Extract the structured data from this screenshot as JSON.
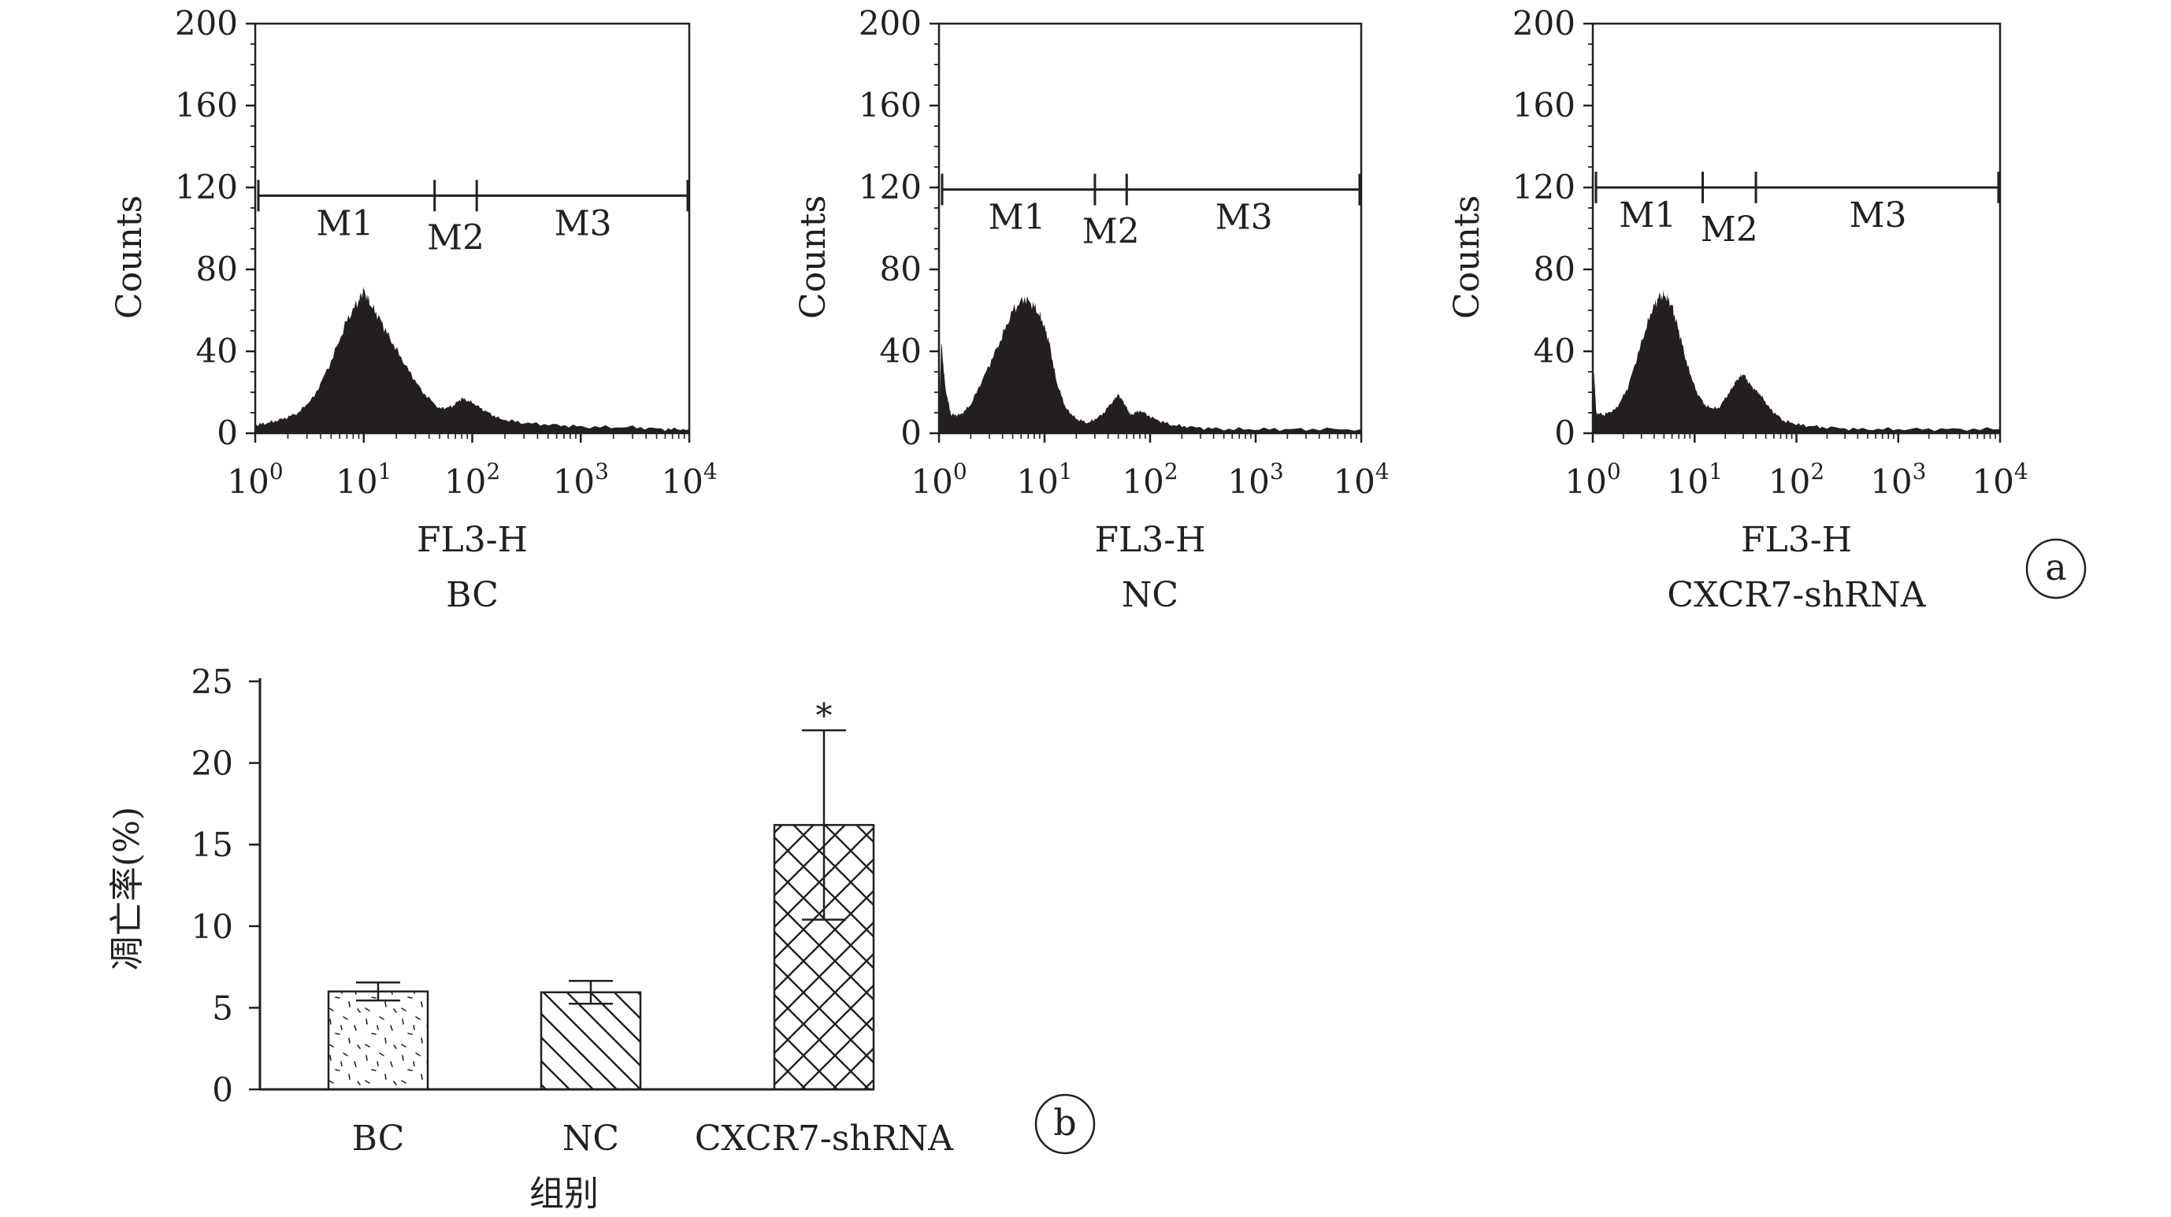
{
  "panel_letters": {
    "a": "a",
    "b": "b"
  },
  "colors": {
    "ink": "#231f20",
    "histogram_fill": "#231f20",
    "bar_fill": "#ffffff"
  },
  "chart_data": [
    {
      "type": "area",
      "panel": "a",
      "subtitle": "BC",
      "xlabel": "FL3-H",
      "ylabel": "Counts",
      "x_scale": "log",
      "xlim": [
        1,
        10000
      ],
      "ylim": [
        0,
        200
      ],
      "x_ticks": [
        {
          "base": "10",
          "exp": "0"
        },
        {
          "base": "10",
          "exp": "1"
        },
        {
          "base": "10",
          "exp": "2"
        },
        {
          "base": "10",
          "exp": "3"
        },
        {
          "base": "10",
          "exp": "4"
        }
      ],
      "y_ticks": [
        "0",
        "40",
        "80",
        "120",
        "160",
        "200"
      ],
      "gates": [
        {
          "label": "M1",
          "range": [
            1.0,
            45
          ]
        },
        {
          "label": "M2",
          "range": [
            45,
            110
          ]
        },
        {
          "label": "M3",
          "range": [
            110,
            10000
          ]
        }
      ],
      "gate_y": 116,
      "x": [
        1.0,
        1.3,
        1.8,
        2.5,
        3.5,
        5.0,
        7.0,
        9.0,
        10.0,
        11.5,
        14,
        18,
        25,
        35,
        50,
        65,
        80,
        100,
        130,
        180,
        300,
        600,
        1200,
        3000,
        6000,
        10000
      ],
      "y": [
        4,
        5,
        7,
        10,
        18,
        35,
        55,
        65,
        70,
        63,
        56,
        45,
        32,
        20,
        12,
        13,
        17,
        15,
        11,
        7,
        5,
        4,
        3,
        3,
        2,
        2
      ]
    },
    {
      "type": "area",
      "panel": "a",
      "subtitle": "NC",
      "xlabel": "FL3-H",
      "ylabel": "Counts",
      "x_scale": "log",
      "xlim": [
        1,
        10000
      ],
      "ylim": [
        0,
        200
      ],
      "x_ticks": [
        {
          "base": "10",
          "exp": "0"
        },
        {
          "base": "10",
          "exp": "1"
        },
        {
          "base": "10",
          "exp": "2"
        },
        {
          "base": "10",
          "exp": "3"
        },
        {
          "base": "10",
          "exp": "4"
        }
      ],
      "y_ticks": [
        "0",
        "40",
        "80",
        "120",
        "160",
        "200"
      ],
      "gates": [
        {
          "label": "M1",
          "range": [
            1.0,
            30
          ]
        },
        {
          "label": "M2",
          "range": [
            30,
            60
          ]
        },
        {
          "label": "M3",
          "range": [
            60,
            10000
          ]
        }
      ],
      "gate_y": 119,
      "x": [
        1.0,
        1.05,
        1.15,
        1.3,
        1.6,
        2.0,
        2.8,
        3.8,
        5.0,
        6.5,
        8.0,
        9.5,
        11,
        13,
        16,
        20,
        26,
        35,
        45,
        50,
        58,
        65,
        80,
        110,
        160,
        250,
        500,
        1200,
        3000,
        10000
      ],
      "y": [
        2,
        45,
        22,
        9,
        9,
        14,
        30,
        45,
        60,
        66,
        62,
        55,
        45,
        25,
        12,
        7,
        5,
        9,
        16,
        19,
        14,
        9,
        11,
        7,
        4,
        3,
        2,
        2,
        2,
        2
      ]
    },
    {
      "type": "area",
      "panel": "a",
      "subtitle": "CXCR7-shRNA",
      "xlabel": "FL3-H",
      "ylabel": "Counts",
      "x_scale": "log",
      "xlim": [
        1,
        10000
      ],
      "ylim": [
        0,
        200
      ],
      "x_ticks": [
        {
          "base": "10",
          "exp": "0"
        },
        {
          "base": "10",
          "exp": "1"
        },
        {
          "base": "10",
          "exp": "2"
        },
        {
          "base": "10",
          "exp": "3"
        },
        {
          "base": "10",
          "exp": "4"
        }
      ],
      "y_ticks": [
        "0",
        "40",
        "80",
        "120",
        "160",
        "200"
      ],
      "gates": [
        {
          "label": "M1",
          "range": [
            1.0,
            12
          ]
        },
        {
          "label": "M2",
          "range": [
            12,
            40
          ]
        },
        {
          "label": "M3",
          "range": [
            40,
            10000
          ]
        }
      ],
      "gate_y": 120,
      "x": [
        1.0,
        1.03,
        1.08,
        1.3,
        1.7,
        2.2,
        3.0,
        3.8,
        4.5,
        5.2,
        6.0,
        7.0,
        8.5,
        10.5,
        13,
        17,
        22,
        26,
        30,
        36,
        44,
        55,
        75,
        110,
        180,
        400,
        1000,
        3000,
        10000
      ],
      "y": [
        2,
        30,
        10,
        9,
        12,
        22,
        44,
        60,
        67,
        67,
        62,
        50,
        33,
        20,
        13,
        12,
        20,
        26,
        29,
        23,
        19,
        12,
        6,
        4,
        3,
        2,
        2,
        2,
        2
      ]
    },
    {
      "type": "bar",
      "panel": "b",
      "xlabel": "组别",
      "ylabel": "凋亡率(%)",
      "ylim": [
        0,
        25
      ],
      "y_ticks": [
        "0",
        "5",
        "10",
        "15",
        "20",
        "25"
      ],
      "categories": [
        "BC",
        "NC",
        "CXCR7-shRNA"
      ],
      "values": [
        6.0,
        5.95,
        16.2
      ],
      "errors": [
        0.55,
        0.7,
        5.8
      ],
      "patterns": [
        "dots",
        "diagonal",
        "crosshatch"
      ],
      "annotations": [
        "",
        "",
        "*"
      ]
    }
  ]
}
